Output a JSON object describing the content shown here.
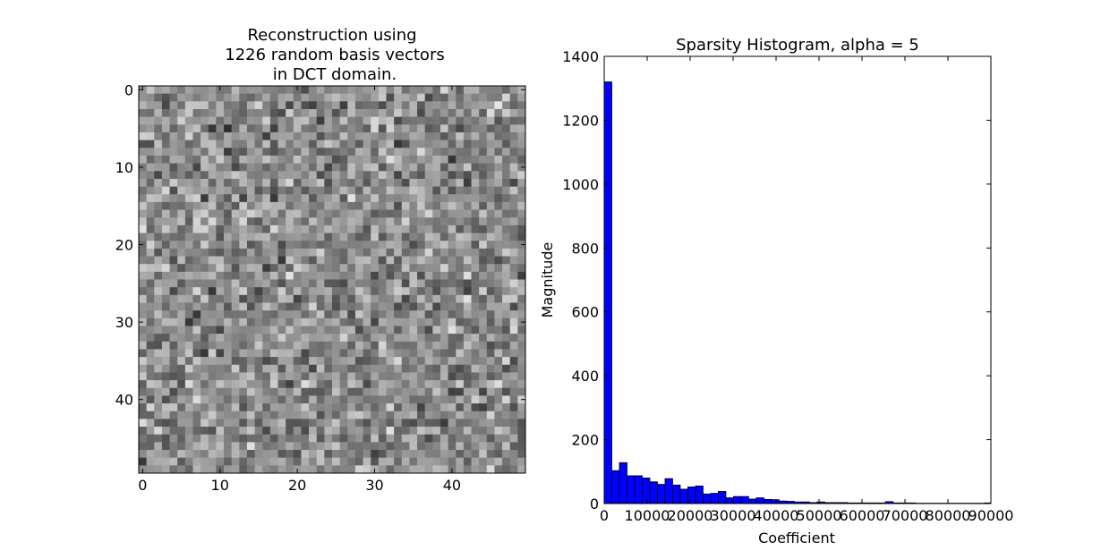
{
  "chart_data": [
    {
      "type": "heatmap",
      "title_lines": [
        "Reconstruction using",
        "1226 random basis vectors",
        "in DCT domain."
      ],
      "xlim": [
        -0.5,
        49.5
      ],
      "ylim": [
        49.5,
        -0.5
      ],
      "xticks": [
        0,
        10,
        20,
        30,
        40
      ],
      "yticks": [
        0,
        10,
        20,
        30,
        40
      ],
      "grid_size": [
        50,
        50
      ],
      "colormap": "gray"
    },
    {
      "type": "bar",
      "title": "Sparsity Histogram, alpha = 5",
      "xlabel": "Coefficient",
      "ylabel": "Magnitude",
      "xlim": [
        0,
        90000
      ],
      "ylim": [
        0,
        1400
      ],
      "xticks": [
        0,
        10000,
        20000,
        30000,
        40000,
        50000,
        60000,
        70000,
        80000,
        90000
      ],
      "yticks": [
        0,
        200,
        400,
        600,
        800,
        1000,
        1200,
        1400
      ],
      "bin_width": 1770,
      "bin_start": 0,
      "values": [
        1320,
        103,
        128,
        87,
        87,
        80,
        68,
        60,
        78,
        58,
        45,
        52,
        55,
        30,
        32,
        38,
        18,
        22,
        22,
        14,
        18,
        13,
        12,
        8,
        7,
        5,
        5,
        3,
        5,
        3,
        3,
        3,
        2,
        2,
        2,
        2,
        2,
        6,
        2,
        2,
        2,
        1,
        1,
        1,
        1,
        1,
        1,
        1,
        1,
        1,
        2,
        1,
        1,
        1,
        1,
        1,
        1,
        1,
        1,
        1,
        1,
        3,
        1,
        1,
        1,
        1,
        1,
        1,
        1,
        1,
        1,
        1,
        1,
        1,
        1,
        1,
        1,
        1,
        1,
        1
      ],
      "bar_color": "#0000ff"
    }
  ]
}
